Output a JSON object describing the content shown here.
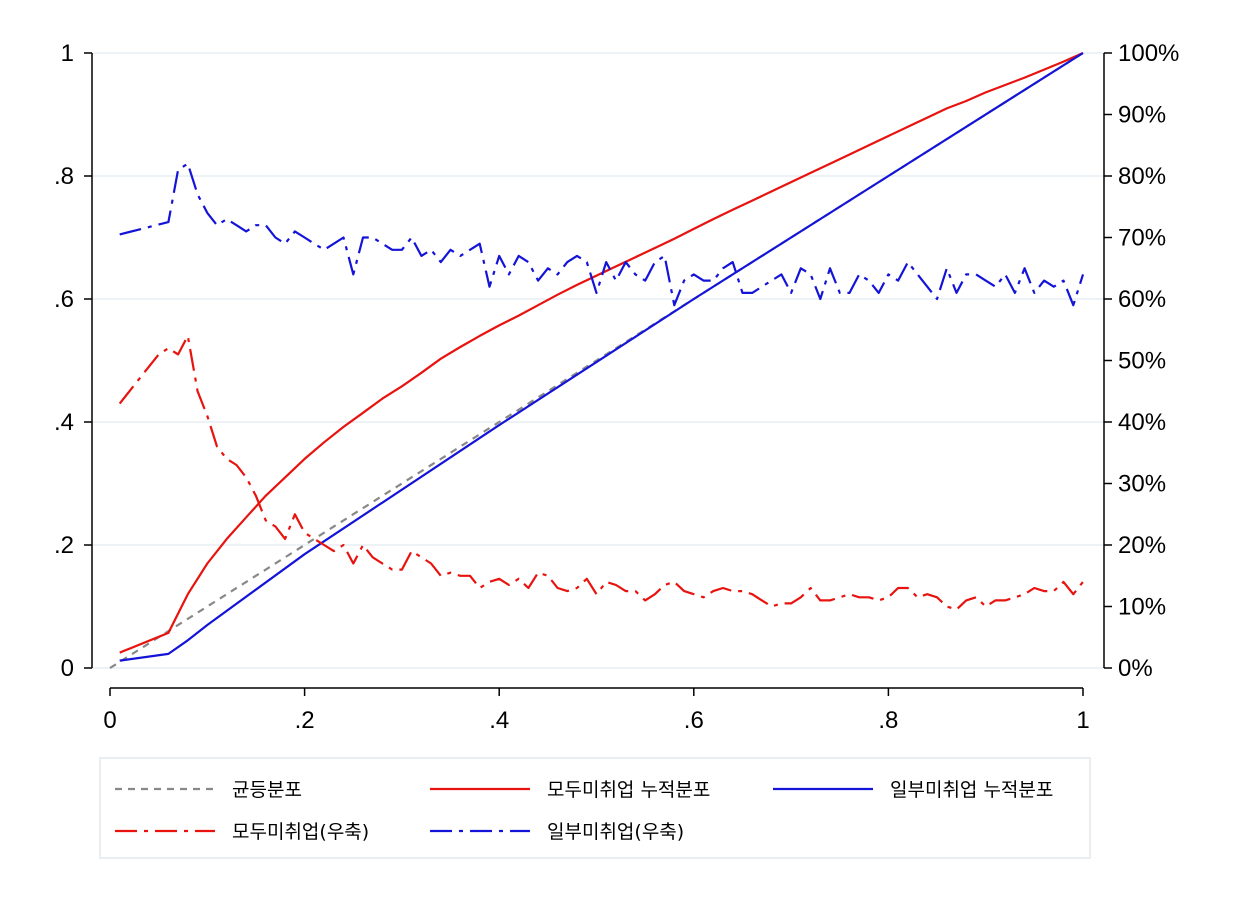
{
  "chart_data": {
    "type": "line",
    "title": "",
    "xlabel": "",
    "ylabel": "",
    "y2label": "",
    "xlim": [
      0,
      1
    ],
    "ylim": [
      0,
      1
    ],
    "y2lim": [
      0,
      1
    ],
    "grid": "horizontal",
    "x_ticks": [
      {
        "value": 0,
        "label": "0"
      },
      {
        "value": 0.2,
        "label": ".2"
      },
      {
        "value": 0.4,
        "label": ".4"
      },
      {
        "value": 0.6,
        "label": ".6"
      },
      {
        "value": 0.8,
        "label": ".8"
      },
      {
        "value": 1,
        "label": "1"
      }
    ],
    "y_ticks": [
      {
        "value": 0,
        "label": "0"
      },
      {
        "value": 0.2,
        "label": ".2"
      },
      {
        "value": 0.4,
        "label": ".4"
      },
      {
        "value": 0.6,
        "label": ".6"
      },
      {
        "value": 0.8,
        "label": ".8"
      },
      {
        "value": 1,
        "label": "1"
      }
    ],
    "y2_ticks": [
      {
        "value": 0,
        "label": "0%"
      },
      {
        "value": 0.1,
        "label": "10%"
      },
      {
        "value": 0.2,
        "label": "20%"
      },
      {
        "value": 0.3,
        "label": "30%"
      },
      {
        "value": 0.4,
        "label": "40%"
      },
      {
        "value": 0.5,
        "label": "50%"
      },
      {
        "value": 0.6,
        "label": "60%"
      },
      {
        "value": 0.7,
        "label": "70%"
      },
      {
        "value": 0.8,
        "label": "80%"
      },
      {
        "value": 0.9,
        "label": "90%"
      },
      {
        "value": 1,
        "label": "100%"
      }
    ],
    "legend_position": "bottom",
    "series": [
      {
        "name": "균등분포",
        "axis": "left",
        "color": "#888888",
        "style": "dash",
        "x": [
          0,
          1
        ],
        "y": [
          0,
          1
        ]
      },
      {
        "name": "모두미취업 누적분포",
        "axis": "left",
        "color": "#e8130f",
        "style": "solid",
        "x": [
          0.01,
          0.06,
          0.08,
          0.1,
          0.12,
          0.14,
          0.16,
          0.18,
          0.2,
          0.22,
          0.24,
          0.26,
          0.28,
          0.3,
          0.32,
          0.34,
          0.36,
          0.38,
          0.4,
          0.42,
          0.44,
          0.46,
          0.48,
          0.5,
          0.52,
          0.54,
          0.56,
          0.58,
          0.6,
          0.62,
          0.64,
          0.66,
          0.68,
          0.7,
          0.72,
          0.74,
          0.76,
          0.78,
          0.8,
          0.82,
          0.84,
          0.86,
          0.88,
          0.9,
          0.92,
          0.94,
          0.96,
          0.98,
          1.0
        ],
        "y": [
          0.025,
          0.057,
          0.12,
          0.17,
          0.21,
          0.245,
          0.28,
          0.31,
          0.34,
          0.367,
          0.392,
          0.415,
          0.438,
          0.458,
          0.48,
          0.503,
          0.522,
          0.54,
          0.557,
          0.573,
          0.59,
          0.607,
          0.623,
          0.638,
          0.653,
          0.668,
          0.683,
          0.698,
          0.714,
          0.73,
          0.745,
          0.76,
          0.775,
          0.79,
          0.805,
          0.82,
          0.835,
          0.85,
          0.865,
          0.88,
          0.895,
          0.91,
          0.922,
          0.936,
          0.948,
          0.96,
          0.973,
          0.986,
          1.0
        ]
      },
      {
        "name": "일부미취업 누적분포",
        "axis": "left",
        "color": "#1414d8",
        "style": "solid",
        "x": [
          0.01,
          0.06,
          0.08,
          0.1,
          0.2,
          0.4,
          0.6,
          0.8,
          1.0
        ],
        "y": [
          0.012,
          0.023,
          0.045,
          0.07,
          0.185,
          0.395,
          0.6,
          0.8,
          1.0
        ]
      },
      {
        "name": "모두미취업(우축)",
        "axis": "right",
        "color": "#e8130f",
        "style": "dashdot",
        "x": [
          0.01,
          0.03,
          0.05,
          0.06,
          0.07,
          0.08,
          0.09,
          0.1,
          0.11,
          0.12,
          0.13,
          0.14,
          0.15,
          0.16,
          0.17,
          0.18,
          0.19,
          0.2,
          0.21,
          0.22,
          0.23,
          0.24,
          0.25,
          0.26,
          0.27,
          0.28,
          0.29,
          0.3,
          0.31,
          0.32,
          0.33,
          0.34,
          0.35,
          0.36,
          0.37,
          0.38,
          0.39,
          0.4,
          0.41,
          0.42,
          0.43,
          0.44,
          0.45,
          0.46,
          0.47,
          0.48,
          0.49,
          0.5,
          0.51,
          0.52,
          0.53,
          0.54,
          0.55,
          0.56,
          0.57,
          0.58,
          0.59,
          0.6,
          0.61,
          0.62,
          0.63,
          0.64,
          0.65,
          0.66,
          0.67,
          0.68,
          0.69,
          0.7,
          0.71,
          0.72,
          0.73,
          0.74,
          0.75,
          0.76,
          0.77,
          0.78,
          0.79,
          0.8,
          0.81,
          0.82,
          0.83,
          0.84,
          0.85,
          0.86,
          0.87,
          0.88,
          0.89,
          0.9,
          0.91,
          0.92,
          0.93,
          0.94,
          0.95,
          0.96,
          0.97,
          0.98,
          0.99,
          1.0
        ],
        "y": [
          0.43,
          0.47,
          0.51,
          0.52,
          0.51,
          0.54,
          0.45,
          0.41,
          0.36,
          0.34,
          0.33,
          0.31,
          0.28,
          0.24,
          0.23,
          0.21,
          0.25,
          0.22,
          0.21,
          0.2,
          0.19,
          0.2,
          0.17,
          0.2,
          0.18,
          0.17,
          0.16,
          0.16,
          0.19,
          0.18,
          0.17,
          0.15,
          0.155,
          0.15,
          0.15,
          0.13,
          0.14,
          0.145,
          0.135,
          0.145,
          0.13,
          0.155,
          0.15,
          0.13,
          0.125,
          0.13,
          0.145,
          0.12,
          0.14,
          0.135,
          0.125,
          0.125,
          0.11,
          0.12,
          0.135,
          0.14,
          0.125,
          0.12,
          0.115,
          0.125,
          0.13,
          0.125,
          0.125,
          0.12,
          0.11,
          0.1,
          0.105,
          0.105,
          0.115,
          0.13,
          0.11,
          0.11,
          0.115,
          0.12,
          0.115,
          0.115,
          0.11,
          0.115,
          0.13,
          0.13,
          0.115,
          0.12,
          0.115,
          0.1,
          0.095,
          0.11,
          0.115,
          0.1,
          0.11,
          0.11,
          0.115,
          0.12,
          0.13,
          0.125,
          0.125,
          0.14,
          0.12,
          0.14
        ]
      },
      {
        "name": "일부미취업(우축)",
        "axis": "right",
        "color": "#1414d8",
        "style": "dashdot",
        "x": [
          0.01,
          0.06,
          0.07,
          0.08,
          0.09,
          0.1,
          0.11,
          0.12,
          0.13,
          0.14,
          0.15,
          0.16,
          0.17,
          0.18,
          0.19,
          0.2,
          0.21,
          0.22,
          0.23,
          0.24,
          0.25,
          0.26,
          0.27,
          0.28,
          0.29,
          0.3,
          0.31,
          0.32,
          0.33,
          0.34,
          0.35,
          0.36,
          0.37,
          0.38,
          0.39,
          0.4,
          0.41,
          0.42,
          0.43,
          0.44,
          0.45,
          0.46,
          0.47,
          0.48,
          0.49,
          0.5,
          0.51,
          0.52,
          0.53,
          0.54,
          0.55,
          0.56,
          0.57,
          0.58,
          0.59,
          0.6,
          0.61,
          0.62,
          0.63,
          0.64,
          0.65,
          0.66,
          0.67,
          0.68,
          0.69,
          0.7,
          0.71,
          0.72,
          0.73,
          0.74,
          0.75,
          0.76,
          0.77,
          0.78,
          0.79,
          0.8,
          0.81,
          0.82,
          0.83,
          0.84,
          0.85,
          0.86,
          0.87,
          0.88,
          0.89,
          0.9,
          0.91,
          0.92,
          0.93,
          0.94,
          0.95,
          0.96,
          0.97,
          0.98,
          0.99,
          1.0
        ],
        "y": [
          0.705,
          0.725,
          0.81,
          0.82,
          0.77,
          0.74,
          0.72,
          0.73,
          0.72,
          0.71,
          0.72,
          0.72,
          0.7,
          0.69,
          0.71,
          0.7,
          0.69,
          0.68,
          0.69,
          0.7,
          0.64,
          0.7,
          0.7,
          0.69,
          0.68,
          0.68,
          0.7,
          0.67,
          0.68,
          0.66,
          0.68,
          0.67,
          0.68,
          0.69,
          0.62,
          0.67,
          0.64,
          0.67,
          0.66,
          0.63,
          0.65,
          0.64,
          0.66,
          0.67,
          0.66,
          0.61,
          0.66,
          0.63,
          0.66,
          0.64,
          0.63,
          0.66,
          0.67,
          0.59,
          0.63,
          0.64,
          0.63,
          0.63,
          0.65,
          0.66,
          0.61,
          0.61,
          0.62,
          0.63,
          0.64,
          0.61,
          0.65,
          0.64,
          0.6,
          0.65,
          0.61,
          0.61,
          0.64,
          0.63,
          0.61,
          0.64,
          0.63,
          0.66,
          0.64,
          0.62,
          0.6,
          0.65,
          0.61,
          0.64,
          0.64,
          0.63,
          0.62,
          0.64,
          0.61,
          0.65,
          0.61,
          0.63,
          0.62,
          0.63,
          0.59,
          0.64
        ]
      }
    ]
  }
}
